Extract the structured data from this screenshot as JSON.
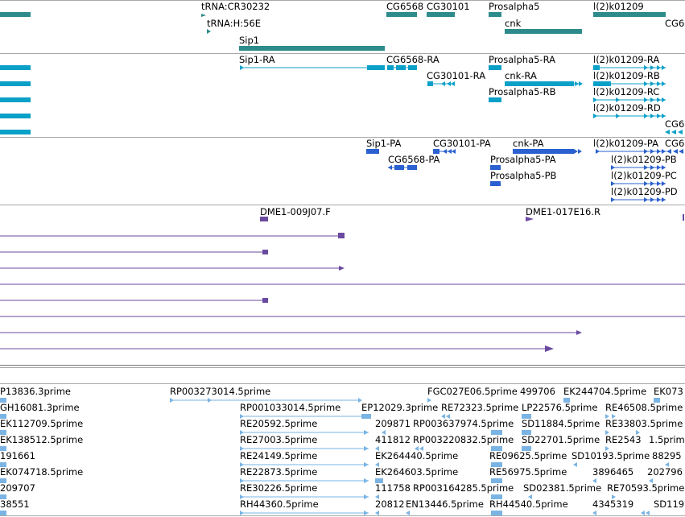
{
  "colors": {
    "gene": "#2e8b8b",
    "transcript": "#0aa0c8",
    "protein": "#2a60d0",
    "clone": "#6a4aa0",
    "est": "#7ab4e4"
  },
  "tracks": {
    "genes": {
      "labels": [
        {
          "text": "tRNA:CR30232"
        },
        {
          "text": "tRNA:H:56E"
        },
        {
          "text": "Sip1"
        },
        {
          "text": "CG6568"
        },
        {
          "text": "CG30101"
        },
        {
          "text": "Prosalpha5"
        },
        {
          "text": "cnk"
        },
        {
          "text": "l(2)k01209"
        },
        {
          "text": "CG6"
        }
      ]
    },
    "transcripts": {
      "labels": [
        {
          "text": "Sip1-RA"
        },
        {
          "text": "CG6568-RA"
        },
        {
          "text": "CG30101-RA"
        },
        {
          "text": "Prosalpha5-RA"
        },
        {
          "text": "cnk-RA"
        },
        {
          "text": "Prosalpha5-RB"
        },
        {
          "text": "l(2)k01209-RA"
        },
        {
          "text": "l(2)k01209-RB"
        },
        {
          "text": "l(2)k01209-RC"
        },
        {
          "text": "l(2)k01209-RD"
        },
        {
          "text": "CG6"
        }
      ]
    },
    "proteins": {
      "labels": [
        {
          "text": "Sip1-PA"
        },
        {
          "text": "CG30101-PA"
        },
        {
          "text": "cnk-PA"
        },
        {
          "text": "l(2)k01209-PA"
        },
        {
          "text": "CG6"
        },
        {
          "text": "CG6568-PA"
        },
        {
          "text": "Prosalpha5-PA"
        },
        {
          "text": "l(2)k01209-PB"
        },
        {
          "text": "Prosalpha5-PB"
        },
        {
          "text": "l(2)k01209-PC"
        },
        {
          "text": "l(2)k01209-PD"
        }
      ]
    },
    "clones": {
      "labels": [
        {
          "text": "DME1-009J07.F"
        },
        {
          "text": "DME1-017E16.R"
        }
      ]
    },
    "ests": {
      "labels": [
        {
          "text": "P13836.3prime"
        },
        {
          "text": "RP003273014.5prime"
        },
        {
          "text": "FGC027E06.5prime"
        },
        {
          "text": "499706"
        },
        {
          "text": "EK244704.5prime"
        },
        {
          "text": "EK073"
        },
        {
          "text": "GH16081.3prime"
        },
        {
          "text": "RP001033014.5prime"
        },
        {
          "text": "EP12029.3prime"
        },
        {
          "text": "RE72323.5prime"
        },
        {
          "text": "LP22576.5prime"
        },
        {
          "text": "RE46508.5prime"
        },
        {
          "text": "EK112709.5prime"
        },
        {
          "text": "RE20592.5prime"
        },
        {
          "text": "209871"
        },
        {
          "text": "RP003637974.5prime"
        },
        {
          "text": "SD11884.5prime"
        },
        {
          "text": "RE33803.5prime"
        },
        {
          "text": "EK138512.5prime"
        },
        {
          "text": "RE27003.5prime"
        },
        {
          "text": "411812"
        },
        {
          "text": "RP003220832.5prime"
        },
        {
          "text": "SD22701.5prime"
        },
        {
          "text": "RE2543"
        },
        {
          "text": "1.5prime"
        },
        {
          "text": "191661"
        },
        {
          "text": "RE24149.5prime"
        },
        {
          "text": "EK264440.5prime"
        },
        {
          "text": "RE09625.5prime"
        },
        {
          "text": "SD10193.5prime"
        },
        {
          "text": "88295"
        },
        {
          "text": "EK074718.5prime"
        },
        {
          "text": "RE22873.5prime"
        },
        {
          "text": "EK264603.5prime"
        },
        {
          "text": "RE56975.5prime"
        },
        {
          "text": "3896465"
        },
        {
          "text": "202796"
        },
        {
          "text": "209707"
        },
        {
          "text": "RE30226.5prime"
        },
        {
          "text": "111758"
        },
        {
          "text": "RP003164285.5prime"
        },
        {
          "text": "SD02381.5prime"
        },
        {
          "text": "RE70593.5prime"
        },
        {
          "text": "38551"
        },
        {
          "text": "RH44360.5prime"
        },
        {
          "text": "20812"
        },
        {
          "text": "EN13446.5prime"
        },
        {
          "text": "RH44540.5prime"
        },
        {
          "text": "4345319"
        },
        {
          "text": "SD119"
        }
      ]
    }
  }
}
